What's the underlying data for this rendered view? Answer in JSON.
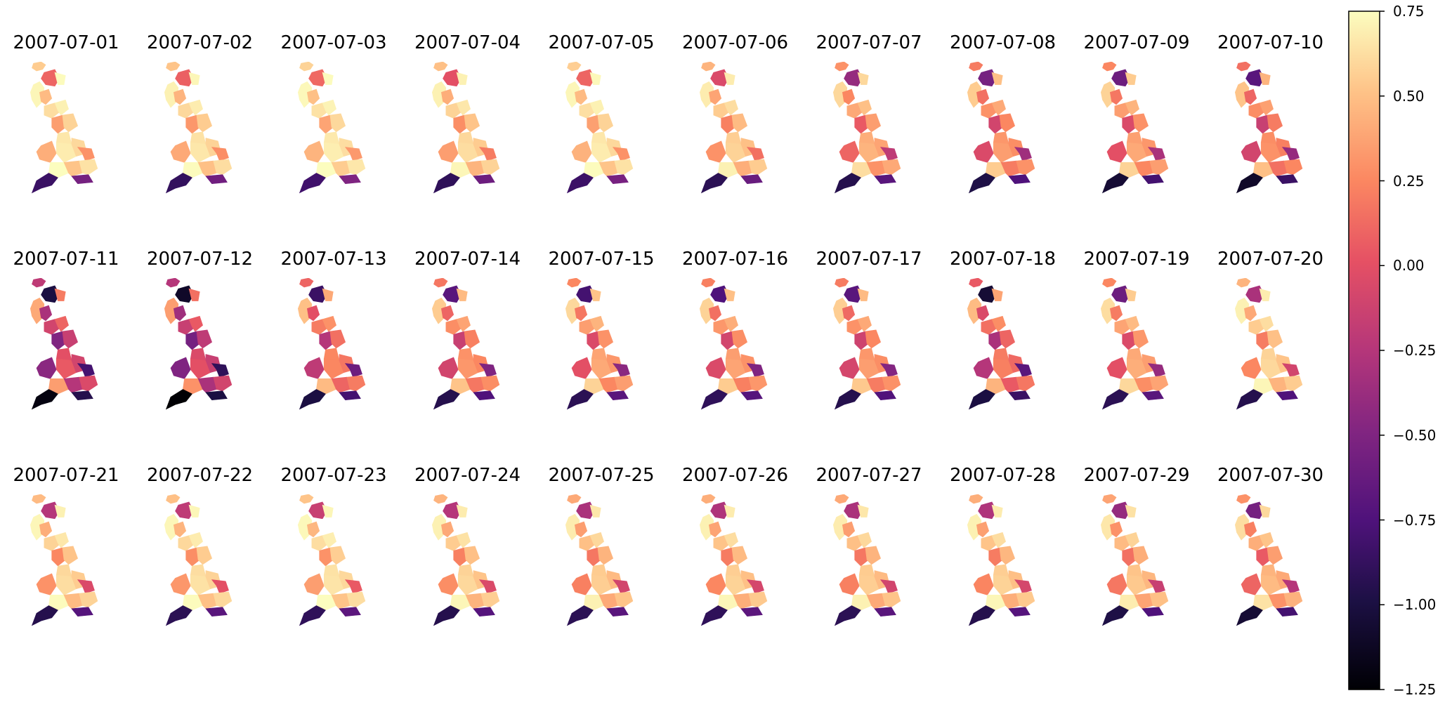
{
  "panels": [
    {
      "date": "2007-07-01",
      "values": [
        0.55,
        0.72,
        0.48,
        0.62,
        0.7,
        0.35,
        0.58,
        0.66,
        0.42,
        0.68,
        0.6,
        0.3,
        0.75,
        0.52,
        0.64,
        -0.85,
        -0.55,
        0.1,
        0.74
      ]
    },
    {
      "date": "2007-07-02",
      "values": [
        0.52,
        0.7,
        0.45,
        0.6,
        0.68,
        0.32,
        0.55,
        0.64,
        0.4,
        0.66,
        0.58,
        0.28,
        0.74,
        0.5,
        0.62,
        -0.88,
        -0.58,
        0.08,
        0.72
      ]
    },
    {
      "date": "2007-07-03",
      "values": [
        0.58,
        0.73,
        0.5,
        0.64,
        0.71,
        0.38,
        0.6,
        0.67,
        0.45,
        0.69,
        0.62,
        0.33,
        0.75,
        0.55,
        0.66,
        -0.82,
        -0.5,
        0.12,
        0.74
      ]
    },
    {
      "date": "2007-07-04",
      "values": [
        0.5,
        0.7,
        0.42,
        0.58,
        0.66,
        0.28,
        0.52,
        0.6,
        0.35,
        0.62,
        0.55,
        0.2,
        0.72,
        0.45,
        0.58,
        -0.9,
        -0.6,
        0.0,
        0.7
      ]
    },
    {
      "date": "2007-07-05",
      "values": [
        0.56,
        0.72,
        0.48,
        0.63,
        0.7,
        0.36,
        0.58,
        0.66,
        0.44,
        0.68,
        0.6,
        0.3,
        0.74,
        0.52,
        0.64,
        -0.84,
        -0.54,
        0.1,
        0.73
      ]
    },
    {
      "date": "2007-07-06",
      "values": [
        0.45,
        0.68,
        0.38,
        0.55,
        0.62,
        0.22,
        0.48,
        0.56,
        0.3,
        0.58,
        0.5,
        0.15,
        0.7,
        0.42,
        0.55,
        -0.92,
        -0.62,
        -0.05,
        0.68
      ]
    },
    {
      "date": "2007-07-07",
      "values": [
        0.3,
        0.6,
        0.25,
        0.4,
        0.5,
        0.05,
        0.35,
        0.42,
        0.1,
        0.45,
        0.38,
        -0.2,
        0.62,
        0.3,
        0.4,
        -0.95,
        -0.7,
        -0.4,
        0.6
      ]
    },
    {
      "date": "2007-07-08",
      "values": [
        0.2,
        0.55,
        0.15,
        0.3,
        0.4,
        -0.1,
        0.25,
        0.32,
        -0.05,
        0.35,
        0.28,
        -0.35,
        0.55,
        0.2,
        0.3,
        -0.98,
        -0.75,
        -0.55,
        0.5
      ]
    },
    {
      "date": "2007-07-09",
      "values": [
        0.25,
        0.58,
        0.18,
        0.35,
        0.45,
        -0.05,
        0.3,
        0.36,
        0.0,
        0.4,
        0.32,
        -0.3,
        0.58,
        0.25,
        0.35,
        -1.05,
        -0.8,
        -0.6,
        0.55
      ]
    },
    {
      "date": "2007-07-10",
      "values": [
        0.15,
        0.52,
        0.1,
        0.28,
        0.36,
        -0.15,
        0.2,
        0.28,
        -0.1,
        0.3,
        0.22,
        -0.4,
        0.5,
        0.15,
        0.25,
        -1.1,
        -0.85,
        -0.7,
        0.45
      ]
    },
    {
      "date": "2007-07-11",
      "values": [
        -0.2,
        0.4,
        -0.3,
        -0.1,
        0.1,
        -0.5,
        -0.15,
        0.0,
        -0.45,
        0.05,
        -0.1,
        -0.8,
        0.35,
        -0.25,
        -0.05,
        -1.2,
        -0.95,
        -1.0,
        0.2
      ]
    },
    {
      "date": "2007-07-12",
      "values": [
        -0.25,
        0.35,
        -0.35,
        -0.15,
        0.05,
        -0.55,
        -0.2,
        -0.05,
        -0.5,
        0.0,
        -0.15,
        -0.9,
        0.3,
        -0.3,
        -0.1,
        -1.25,
        -1.0,
        -1.1,
        0.15
      ]
    },
    {
      "date": "2007-07-13",
      "values": [
        0.1,
        0.5,
        0.0,
        0.2,
        0.3,
        -0.25,
        0.15,
        0.25,
        -0.2,
        0.25,
        0.18,
        -0.6,
        0.48,
        0.1,
        0.2,
        -1.0,
        -0.8,
        -0.85,
        0.4
      ]
    },
    {
      "date": "2007-07-14",
      "values": [
        0.18,
        0.55,
        0.1,
        0.28,
        0.38,
        -0.15,
        0.22,
        0.3,
        -0.1,
        0.32,
        0.25,
        -0.5,
        0.52,
        0.18,
        0.28,
        -0.95,
        -0.75,
        -0.7,
        0.48
      ]
    },
    {
      "date": "2007-07-15",
      "values": [
        0.25,
        0.6,
        0.18,
        0.35,
        0.45,
        -0.05,
        0.3,
        0.38,
        0.0,
        0.4,
        0.32,
        -0.45,
        0.58,
        0.25,
        0.35,
        -0.92,
        -0.7,
        -0.8,
        0.52
      ]
    },
    {
      "date": "2007-07-16",
      "values": [
        0.22,
        0.58,
        0.15,
        0.32,
        0.42,
        -0.1,
        0.28,
        0.35,
        -0.05,
        0.38,
        0.3,
        -0.5,
        0.55,
        0.22,
        0.32,
        -0.9,
        -0.72,
        -0.75,
        0.5
      ]
    },
    {
      "date": "2007-07-17",
      "values": [
        0.2,
        0.56,
        0.12,
        0.3,
        0.4,
        -0.12,
        0.25,
        0.32,
        -0.08,
        0.35,
        0.28,
        -0.48,
        0.54,
        0.2,
        0.3,
        -0.95,
        -0.74,
        -0.7,
        0.48
      ]
    },
    {
      "date": "2007-07-18",
      "values": [
        0.05,
        0.48,
        -0.05,
        0.15,
        0.28,
        -0.3,
        0.1,
        0.2,
        -0.25,
        0.22,
        0.12,
        -0.7,
        0.45,
        0.05,
        0.18,
        -1.0,
        -0.85,
        -1.05,
        0.38
      ]
    },
    {
      "date": "2007-07-19",
      "values": [
        0.25,
        0.62,
        0.2,
        0.38,
        0.48,
        -0.05,
        0.32,
        0.4,
        0.0,
        0.42,
        0.35,
        -0.4,
        0.6,
        0.28,
        0.38,
        -0.92,
        -0.7,
        -0.6,
        0.55
      ]
    },
    {
      "date": "2007-07-20",
      "values": [
        0.45,
        0.7,
        0.4,
        0.55,
        0.62,
        0.2,
        0.5,
        0.58,
        0.25,
        0.6,
        0.52,
        -0.1,
        0.72,
        0.45,
        0.55,
        -0.95,
        -0.75,
        -0.3,
        0.68
      ]
    },
    {
      "date": "2007-07-21",
      "values": [
        0.48,
        0.72,
        0.42,
        0.58,
        0.66,
        0.25,
        0.52,
        0.6,
        0.3,
        0.62,
        0.55,
        -0.05,
        0.74,
        0.48,
        0.58,
        -0.95,
        -0.72,
        -0.25,
        0.7
      ]
    },
    {
      "date": "2007-07-22",
      "values": [
        0.5,
        0.72,
        0.45,
        0.6,
        0.68,
        0.28,
        0.55,
        0.62,
        0.32,
        0.64,
        0.58,
        0.0,
        0.74,
        0.5,
        0.6,
        -0.92,
        -0.7,
        -0.2,
        0.72
      ]
    },
    {
      "date": "2007-07-23",
      "values": [
        0.52,
        0.73,
        0.46,
        0.62,
        0.69,
        0.3,
        0.56,
        0.64,
        0.35,
        0.65,
        0.6,
        0.05,
        0.75,
        0.52,
        0.62,
        -0.9,
        -0.68,
        -0.15,
        0.72
      ]
    },
    {
      "date": "2007-07-24",
      "values": [
        0.45,
        0.7,
        0.4,
        0.55,
        0.64,
        0.22,
        0.5,
        0.58,
        0.28,
        0.6,
        0.52,
        -0.05,
        0.72,
        0.45,
        0.56,
        -0.95,
        -0.72,
        -0.25,
        0.68
      ]
    },
    {
      "date": "2007-07-25",
      "values": [
        0.4,
        0.68,
        0.35,
        0.5,
        0.6,
        0.18,
        0.45,
        0.55,
        0.22,
        0.56,
        0.48,
        -0.1,
        0.7,
        0.4,
        0.52,
        -0.92,
        -0.7,
        -0.3,
        0.66
      ]
    },
    {
      "date": "2007-07-26",
      "values": [
        0.42,
        0.7,
        0.38,
        0.52,
        0.62,
        0.2,
        0.48,
        0.56,
        0.25,
        0.58,
        0.5,
        -0.08,
        0.72,
        0.42,
        0.54,
        -0.9,
        -0.68,
        -0.28,
        0.68
      ]
    },
    {
      "date": "2007-07-27",
      "values": [
        0.4,
        0.68,
        0.35,
        0.5,
        0.6,
        0.18,
        0.45,
        0.55,
        0.22,
        0.56,
        0.48,
        -0.1,
        0.7,
        0.4,
        0.52,
        -0.92,
        -0.7,
        -0.3,
        0.66
      ]
    },
    {
      "date": "2007-07-28",
      "values": [
        0.42,
        0.7,
        0.36,
        0.52,
        0.62,
        0.2,
        0.46,
        0.56,
        0.24,
        0.58,
        0.5,
        -0.08,
        0.72,
        0.42,
        0.54,
        -0.95,
        -0.72,
        -0.28,
        0.68
      ]
    },
    {
      "date": "2007-07-29",
      "values": [
        0.38,
        0.66,
        0.3,
        0.48,
        0.58,
        0.15,
        0.42,
        0.52,
        0.18,
        0.54,
        0.46,
        -0.15,
        0.68,
        0.38,
        0.5,
        -0.98,
        -0.75,
        -0.4,
        0.64
      ]
    },
    {
      "date": "2007-07-30",
      "values": [
        0.3,
        0.62,
        0.22,
        0.42,
        0.52,
        0.05,
        0.35,
        0.45,
        0.1,
        0.48,
        0.4,
        -0.25,
        0.64,
        0.3,
        0.44,
        -1.05,
        -0.8,
        -0.55,
        0.6
      ]
    }
  ],
  "colorbar": {
    "colormap": "magma",
    "min": -1.25,
    "max": 0.75,
    "ticks": [
      "0.75",
      "0.50",
      "0.25",
      "0.00",
      "−0.25",
      "−0.50",
      "−0.75",
      "−1.00",
      "−1.25"
    ],
    "tick_values": [
      0.75,
      0.5,
      0.25,
      0.0,
      -0.25,
      -0.5,
      -0.75,
      -1.0,
      -1.25
    ]
  }
}
